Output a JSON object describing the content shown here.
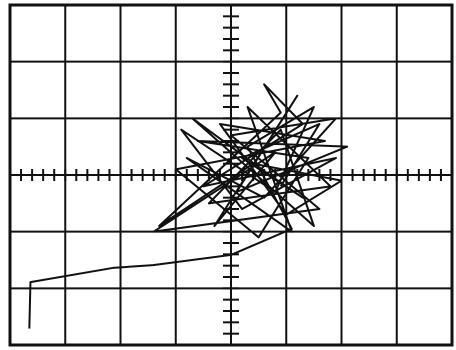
{
  "chart_data": {
    "type": "line",
    "x": [
      -3.65,
      -3.63,
      -2.14,
      -1.41,
      0.0,
      1.1,
      0.3,
      1.5,
      0.8,
      -0.9,
      0.2,
      1.9,
      -0.5,
      1.3,
      0.6,
      0.9,
      -1.3,
      0.4,
      2.0,
      1.0,
      -0.2,
      1.7,
      -1.0,
      0.5,
      1.4,
      -0.6,
      2.1,
      0.1,
      1.2,
      -0.3,
      0.8,
      -1.4,
      1.6,
      0.0,
      1.9,
      0.6,
      -0.8,
      1.1,
      0.3,
      1.8,
      -0.4,
      0.9,
      1.5,
      -0.7,
      0.7,
      1.3,
      0.2,
      1.6,
      0.9
    ],
    "values": [
      -2.71,
      -1.89,
      -1.64,
      -1.59,
      -1.41,
      -0.95,
      0.5,
      1.2,
      -0.3,
      0.8,
      -0.6,
      0.3,
      -0.2,
      0.9,
      1.6,
      1.1,
      -0.9,
      0.2,
      -0.1,
      -0.7,
      0.9,
      0.6,
      0.1,
      -1.1,
      0.3,
      0.6,
      0.5,
      -0.3,
      1.4,
      -0.9,
      0.4,
      -1.0,
      -0.6,
      0.7,
      1.0,
      -0.4,
      0.3,
      -1.0,
      1.2,
      -0.2,
      -0.5,
      0.8,
      -0.9,
      1.0,
      0.0,
      -0.4,
      0.3,
      0.9,
      -0.2
    ],
    "color": "#111111",
    "xlim": [
      -4,
      4
    ],
    "ylim": [
      -3,
      3
    ],
    "xticks": [
      -4,
      -3,
      -2,
      -1,
      0,
      1,
      2,
      3,
      4
    ],
    "yticks": [
      -3,
      -2,
      -1,
      0,
      1,
      2,
      3
    ],
    "grid": true
  }
}
